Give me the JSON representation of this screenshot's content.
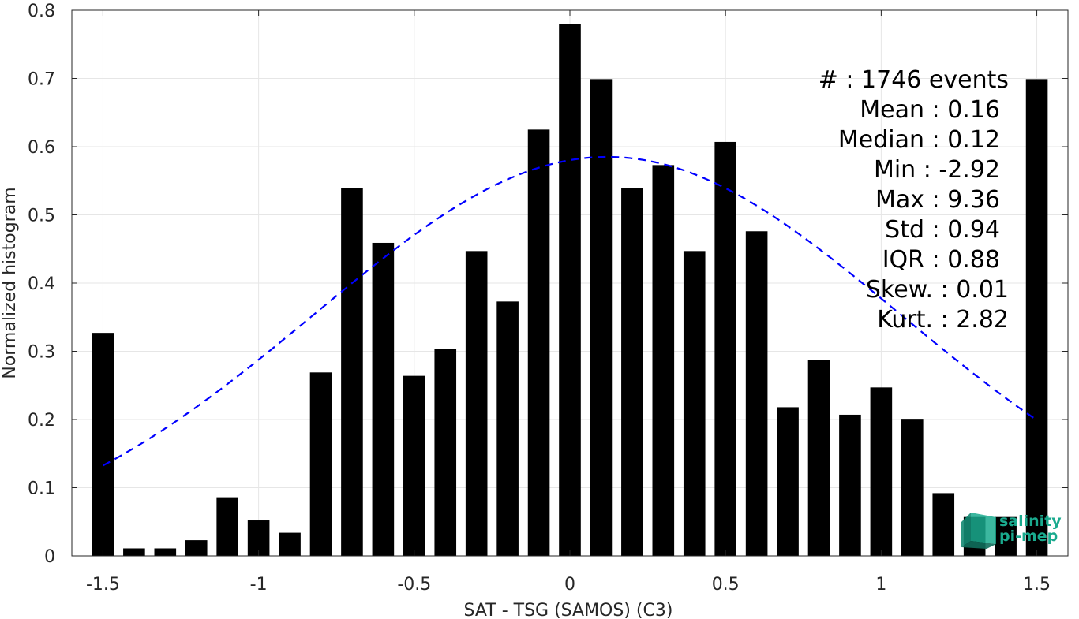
{
  "chart_data": {
    "type": "bar",
    "xlabel": "SAT - TSG (SAMOS) (C3)",
    "ylabel": "Normalized histogram",
    "xlim": [
      -1.6,
      1.6
    ],
    "ylim": [
      0,
      0.8
    ],
    "xticks": [
      -1.5,
      -1,
      -0.5,
      0,
      0.5,
      1,
      1.5
    ],
    "xtick_labels": [
      "-1.5",
      "-1",
      "-0.5",
      "0",
      "0.5",
      "1",
      "1.5"
    ],
    "yticks": [
      0,
      0.1,
      0.2,
      0.3,
      0.4,
      0.5,
      0.6,
      0.7,
      0.8
    ],
    "ytick_labels": [
      "0",
      "0.1",
      "0.2",
      "0.3",
      "0.4",
      "0.5",
      "0.6",
      "0.7",
      "0.8"
    ],
    "grid": true,
    "bar_color": "#000000",
    "bar_width": 0.07,
    "x": [
      -1.5,
      -1.4,
      -1.3,
      -1.2,
      -1.1,
      -1.0,
      -0.9,
      -0.8,
      -0.7,
      -0.6,
      -0.5,
      -0.4,
      -0.3,
      -0.2,
      -0.1,
      0.0,
      0.1,
      0.2,
      0.3,
      0.4,
      0.5,
      0.6,
      0.7,
      0.8,
      0.9,
      1.0,
      1.1,
      1.2,
      1.3,
      1.4,
      1.5
    ],
    "values": [
      0.327,
      0.011,
      0.011,
      0.023,
      0.086,
      0.052,
      0.034,
      0.269,
      0.539,
      0.459,
      0.264,
      0.304,
      0.447,
      0.373,
      0.625,
      0.78,
      0.699,
      0.539,
      0.573,
      0.447,
      0.607,
      0.476,
      0.218,
      0.287,
      0.207,
      0.247,
      0.201,
      0.092,
      0.057,
      0.057,
      0.699
    ],
    "fit": {
      "type": "normal",
      "mean": 0.12,
      "std": 0.94,
      "peak": 0.585,
      "x_range": [
        -1.5,
        1.5
      ],
      "color": "#0000ff",
      "style": "dashed"
    },
    "stats": [
      "#  : 1746 events",
      "Mean : 0.16",
      "Median : 0.12",
      "Min : -2.92",
      "Max : 9.36",
      "Std : 0.94",
      "IQR : 0.88",
      "Skew. : 0.01",
      "Kurt. : 2.82"
    ]
  },
  "logo": {
    "line1": "salinity",
    "line2": "pi-mep",
    "color": "#1aaa8e"
  }
}
